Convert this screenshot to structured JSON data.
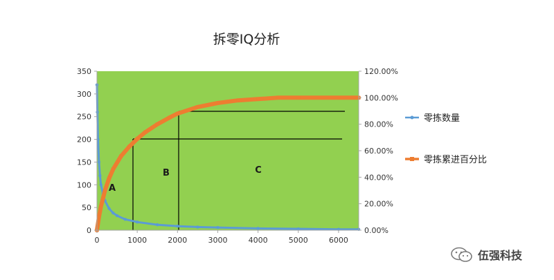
{
  "chart_data": {
    "type": "line",
    "title": "拆零IQ分析",
    "x": {
      "ticks": [
        "0",
        "1000",
        "2000",
        "3000",
        "4000",
        "5000",
        "6000"
      ],
      "range": [
        0,
        6500
      ]
    },
    "y_left": {
      "ticks": [
        "0",
        "50",
        "100",
        "150",
        "200",
        "250",
        "300",
        "350"
      ],
      "range": [
        0,
        350
      ]
    },
    "y_right": {
      "ticks": [
        "0.00%",
        "20.00%",
        "40.00%",
        "60.00%",
        "80.00%",
        "100.00%",
        "120.00%"
      ],
      "range": [
        0,
        120
      ]
    },
    "series": [
      {
        "name": "零拣数量",
        "axis": "left",
        "color": "#5b9bd5",
        "x": [
          0,
          10,
          25,
          50,
          75,
          100,
          150,
          200,
          300,
          400,
          500,
          700,
          1000,
          1500,
          2000,
          2500,
          3000,
          4000,
          5000,
          6000,
          6500
        ],
        "y": [
          320,
          260,
          200,
          150,
          120,
          100,
          80,
          65,
          48,
          38,
          32,
          24,
          18,
          12,
          9,
          7,
          6,
          4,
          3,
          2,
          2
        ]
      },
      {
        "name": "零拣累进百分比",
        "axis": "right",
        "color": "#ed7d31",
        "x": [
          0,
          50,
          100,
          200,
          300,
          400,
          600,
          800,
          1000,
          1200,
          1500,
          1800,
          2000,
          2500,
          3000,
          3500,
          4000,
          4500,
          5000,
          6000,
          6500
        ],
        "y": [
          0,
          10,
          18,
          30,
          39,
          46,
          56,
          63,
          69,
          74,
          80,
          85,
          88,
          93,
          96,
          98,
          99,
          100,
          100,
          100,
          100
        ]
      }
    ],
    "annotations": {
      "regions": [
        "A",
        "B",
        "C"
      ]
    },
    "grid": false,
    "legend_position": "right",
    "plot_background": "#92d050"
  },
  "watermark": {
    "text": "伍强科技",
    "icon": "wechat-icon"
  }
}
